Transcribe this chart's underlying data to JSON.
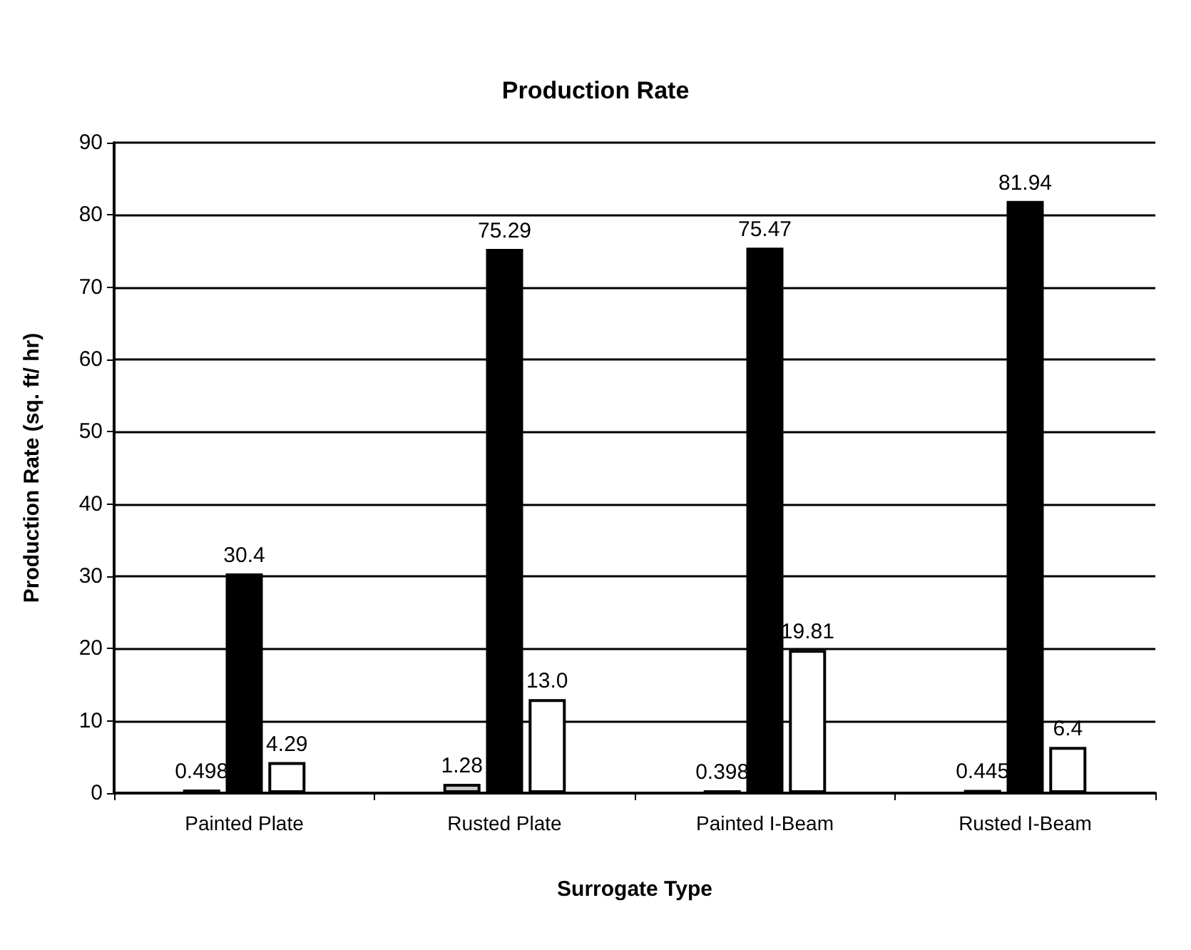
{
  "chart_data": {
    "type": "bar",
    "title": "Production Rate",
    "xlabel": "Surrogate Type",
    "ylabel": "Production Rate (sq. ft/ hr)",
    "categories": [
      "Painted Plate",
      "Rusted Plate",
      "Painted I-Beam",
      "Rusted I-Beam"
    ],
    "series": [
      {
        "color": "#c8c8c8",
        "values": [
          0.498,
          1.28,
          0.398,
          0.445
        ],
        "value_labels": [
          "0.498",
          "1.28",
          "0.398",
          "0.445"
        ]
      },
      {
        "color": "#000000",
        "values": [
          30.4,
          75.29,
          75.47,
          81.94
        ],
        "value_labels": [
          "30.4",
          "75.29",
          "75.47",
          "81.94"
        ]
      },
      {
        "color": "#ffffff",
        "values": [
          4.29,
          13.0,
          19.81,
          6.4
        ],
        "value_labels": [
          "4.29",
          "13.0",
          "19.81",
          "6.4"
        ]
      }
    ],
    "ylim": [
      0,
      90
    ],
    "yticks": [
      0,
      10,
      20,
      30,
      40,
      50,
      60,
      70,
      80,
      90
    ],
    "grid": "y"
  }
}
